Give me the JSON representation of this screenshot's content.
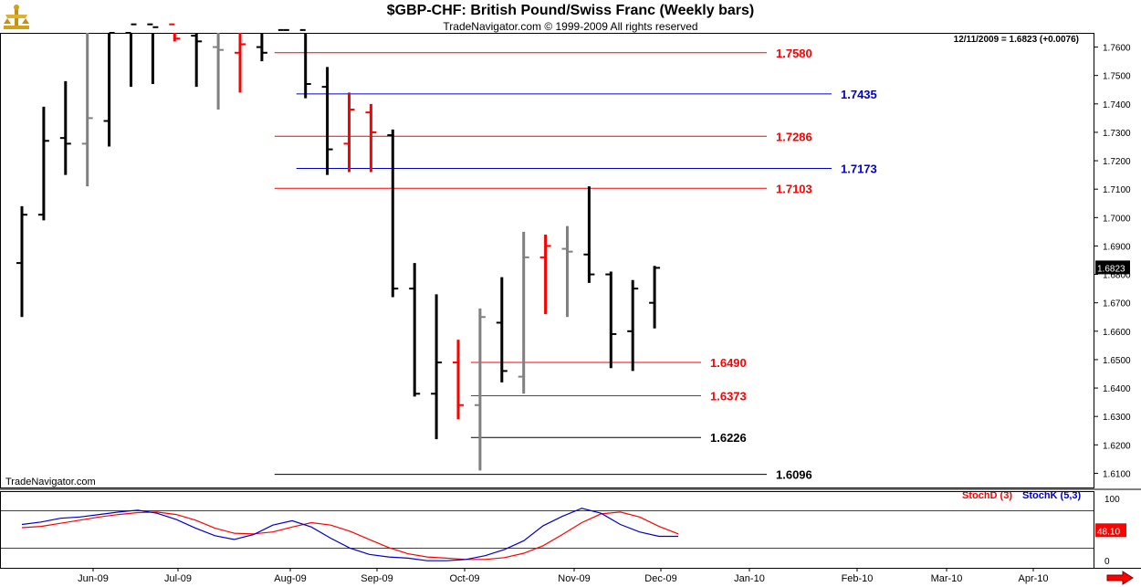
{
  "header": {
    "title": "$GBP-CHF:  British Pound/Swiss Franc  (Weekly bars)",
    "subtitle": "TradeNavigator.com © 1999-2009 All rights reserved",
    "last_quote": "12/11/2009 = 1.6823 (+0.0076)"
  },
  "watermark": "TradeNavigator.com",
  "colors": {
    "up": "#000000",
    "down": "#ff0000",
    "neutral": "#808080",
    "blue": "#0000cc",
    "red": "#ff0000",
    "stoch_d": "#ff0000",
    "stoch_k": "#0000cc"
  },
  "chart_data": [
    {
      "type": "ohlc",
      "title": "$GBP-CHF:  British Pound/Swiss Franc  (Weekly bars)",
      "ylim": [
        1.605,
        1.765
      ],
      "y_ticks": [
        "1.6100",
        "1.6200",
        "1.6300",
        "1.6400",
        "1.6500",
        "1.6600",
        "1.6700",
        "1.6800",
        "1.6900",
        "1.7000",
        "1.7100",
        "1.7200",
        "1.7300",
        "1.7400",
        "1.7500",
        "1.7600"
      ],
      "x_ticks": [
        "Jun-09",
        "Jul-09",
        "Aug-09",
        "Sep-09",
        "Oct-09",
        "Nov-09",
        "Dec-09",
        "Jan-10",
        "Feb-10",
        "Mar-10",
        "Apr-10"
      ],
      "last_price_label": "1.6823",
      "bars": [
        {
          "week": 1,
          "o": 1.684,
          "h": 1.704,
          "l": 1.665,
          "c": 1.701,
          "color": "up"
        },
        {
          "week": 2,
          "o": 1.701,
          "h": 1.739,
          "l": 1.699,
          "c": 1.727,
          "color": "up"
        },
        {
          "week": 3,
          "o": 1.728,
          "h": 1.748,
          "l": 1.715,
          "c": 1.726,
          "color": "up"
        },
        {
          "week": 4,
          "o": 1.726,
          "h": 1.769,
          "l": 1.711,
          "c": 1.735,
          "color": "neutral"
        },
        {
          "week": 5,
          "o": 1.734,
          "h": 1.77,
          "l": 1.725,
          "c": 1.765,
          "color": "up"
        },
        {
          "week": 6,
          "o": 1.765,
          "h": 1.77,
          "l": 1.746,
          "c": 1.768,
          "color": "up"
        },
        {
          "week": 7,
          "o": 1.768,
          "h": 1.77,
          "l": 1.747,
          "c": 1.767,
          "color": "up"
        },
        {
          "week": 8,
          "o": 1.768,
          "h": 1.77,
          "l": 1.762,
          "c": 1.763,
          "color": "down"
        },
        {
          "week": 9,
          "o": 1.764,
          "h": 1.77,
          "l": 1.746,
          "c": 1.762,
          "color": "up"
        },
        {
          "week": 10,
          "o": 1.76,
          "h": 1.77,
          "l": 1.738,
          "c": 1.759,
          "color": "neutral"
        },
        {
          "week": 11,
          "o": 1.758,
          "h": 1.765,
          "l": 1.744,
          "c": 1.761,
          "color": "down"
        },
        {
          "week": 12,
          "o": 1.76,
          "h": 1.77,
          "l": 1.755,
          "c": 1.758,
          "color": "up"
        },
        {
          "week": 13,
          "o": 1.766,
          "h": 1.77,
          "l": 1.765,
          "c": 1.766,
          "color": "up"
        },
        {
          "week": 14,
          "o": 1.766,
          "h": 1.767,
          "l": 1.742,
          "c": 1.747,
          "color": "up"
        },
        {
          "week": 15,
          "o": 1.746,
          "h": 1.753,
          "l": 1.715,
          "c": 1.724,
          "color": "up"
        },
        {
          "week": 16,
          "o": 1.726,
          "h": 1.744,
          "l": 1.716,
          "c": 1.738,
          "color": "down"
        },
        {
          "week": 17,
          "o": 1.737,
          "h": 1.74,
          "l": 1.716,
          "c": 1.73,
          "color": "down"
        },
        {
          "week": 18,
          "o": 1.729,
          "h": 1.731,
          "l": 1.672,
          "c": 1.675,
          "color": "up"
        },
        {
          "week": 19,
          "o": 1.675,
          "h": 1.684,
          "l": 1.637,
          "c": 1.638,
          "color": "up"
        },
        {
          "week": 20,
          "o": 1.638,
          "h": 1.673,
          "l": 1.622,
          "c": 1.649,
          "color": "up"
        },
        {
          "week": 21,
          "o": 1.649,
          "h": 1.657,
          "l": 1.629,
          "c": 1.634,
          "color": "down"
        },
        {
          "week": 22,
          "o": 1.634,
          "h": 1.668,
          "l": 1.611,
          "c": 1.665,
          "color": "neutral"
        },
        {
          "week": 23,
          "o": 1.663,
          "h": 1.679,
          "l": 1.642,
          "c": 1.646,
          "color": "up"
        },
        {
          "week": 24,
          "o": 1.644,
          "h": 1.695,
          "l": 1.638,
          "c": 1.686,
          "color": "neutral"
        },
        {
          "week": 25,
          "o": 1.686,
          "h": 1.694,
          "l": 1.666,
          "c": 1.69,
          "color": "down"
        },
        {
          "week": 26,
          "o": 1.689,
          "h": 1.697,
          "l": 1.665,
          "c": 1.688,
          "color": "neutral"
        },
        {
          "week": 27,
          "o": 1.687,
          "h": 1.711,
          "l": 1.677,
          "c": 1.68,
          "color": "up"
        },
        {
          "week": 28,
          "o": 1.68,
          "h": 1.681,
          "l": 1.647,
          "c": 1.659,
          "color": "up"
        },
        {
          "week": 29,
          "o": 1.66,
          "h": 1.678,
          "l": 1.646,
          "c": 1.675,
          "color": "up"
        },
        {
          "week": 30,
          "o": 1.67,
          "h": 1.683,
          "l": 1.661,
          "c": 1.6823,
          "color": "up"
        }
      ],
      "levels": [
        {
          "label": "1.7580",
          "value": 1.758,
          "color": "red",
          "from_week": 13.0,
          "to_date": "Jan-10"
        },
        {
          "label": "1.7435",
          "value": 1.7435,
          "color": "blue",
          "from_week": 14.0,
          "to_date": "Feb-10"
        },
        {
          "label": "1.7286",
          "value": 1.7286,
          "color": "red",
          "from_week": 13.0,
          "to_date": "Jan-10"
        },
        {
          "label": "1.7173",
          "value": 1.7173,
          "color": "blue",
          "from_week": 14.0,
          "to_date": "Feb-10"
        },
        {
          "label": "1.7103",
          "value": 1.7103,
          "color": "red",
          "from_week": 13.0,
          "to_date": "Jan-10"
        },
        {
          "label": "1.6490",
          "value": 1.649,
          "color": "red",
          "from_week": 22.0,
          "to_date": "Jan-10"
        },
        {
          "label": "1.6373",
          "value": 1.6373,
          "color": "red",
          "from_week": 22.0,
          "to_date": "Jan-10"
        },
        {
          "label": "1.6226",
          "value": 1.6226,
          "color": "black",
          "from_week": 22.0,
          "to_date": "Jan-10"
        },
        {
          "label": "1.6096",
          "value": 1.6096,
          "color": "black",
          "from_week": 13.0,
          "to_date": "Jan-10"
        }
      ]
    },
    {
      "type": "line",
      "title": "",
      "ylim": [
        -10,
        110
      ],
      "y_ticks": [
        "100",
        "0"
      ],
      "reference_lines": [
        80,
        20
      ],
      "last_value_label": "48.10",
      "legend": [
        {
          "name": "StochD (3)",
          "color": "stoch_d"
        },
        {
          "name": "StochK (5,3)",
          "color": "stoch_k"
        }
      ],
      "series": [
        {
          "name": "StochD (3)",
          "color": "stoch_d",
          "values": [
            53,
            55,
            60,
            65,
            70,
            74,
            77,
            78,
            74,
            65,
            52,
            44,
            43,
            46,
            54,
            61,
            57,
            47,
            34,
            21,
            11,
            6,
            4,
            2,
            2,
            5,
            12,
            24,
            42,
            61,
            75,
            78,
            70,
            55,
            43
          ]
        },
        {
          "name": "StochK (5,3)",
          "color": "stoch_k",
          "values": [
            58,
            62,
            68,
            70,
            74,
            78,
            81,
            76,
            66,
            52,
            40,
            34,
            42,
            57,
            64,
            54,
            36,
            20,
            10,
            6,
            4,
            0,
            0,
            2,
            8,
            18,
            32,
            56,
            71,
            84,
            76,
            58,
            46,
            39,
            39
          ]
        }
      ]
    }
  ]
}
